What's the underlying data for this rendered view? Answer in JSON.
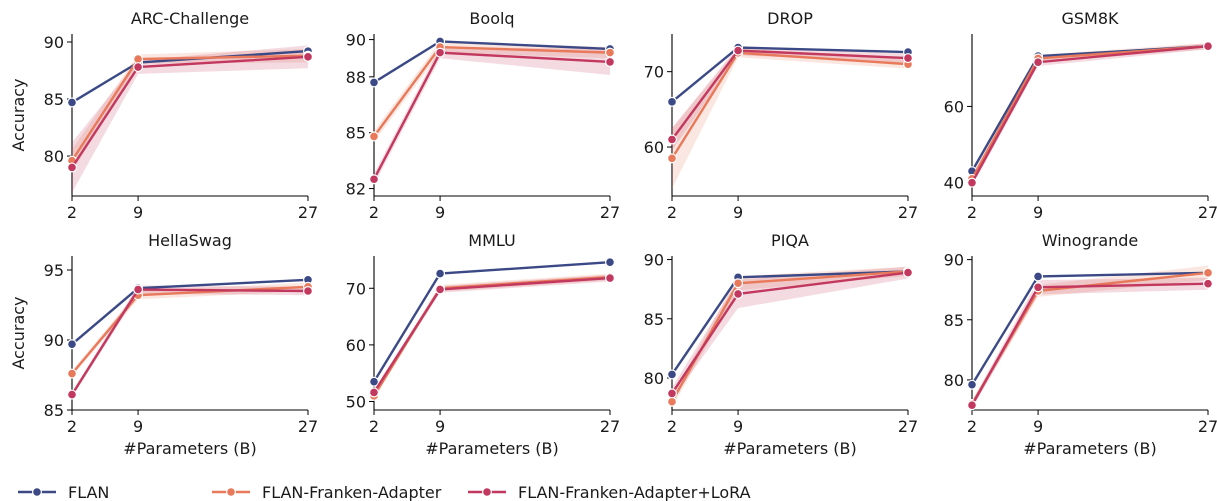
{
  "legend": [
    {
      "name": "FLAN",
      "color": "#3b4a86"
    },
    {
      "name": "FLAN-Franken-Adapter",
      "color": "#e8795a"
    },
    {
      "name": "FLAN-Franken-Adapter+LoRA",
      "color": "#c2385e"
    }
  ],
  "chart_data": [
    {
      "type": "line",
      "title": "ARC-Challenge",
      "xlabel": "",
      "ylabel": "Accuracy",
      "x": [
        2,
        9,
        27
      ],
      "xticks": [
        "2",
        "9",
        "27"
      ],
      "yticks": [
        80,
        85,
        90
      ],
      "ylim": [
        76.5,
        90.7
      ],
      "series": [
        {
          "name": "FLAN",
          "values": [
            84.7,
            88.2,
            89.2
          ]
        },
        {
          "name": "FLAN-Franken-Adapter",
          "values": [
            79.6,
            88.5,
            88.8
          ],
          "band": [
            1.0,
            0.4,
            0.6
          ]
        },
        {
          "name": "FLAN-Franken-Adapter+LoRA",
          "values": [
            79.0,
            87.8,
            88.7
          ],
          "band": [
            2.2,
            0.6,
            1.0
          ]
        }
      ]
    },
    {
      "type": "line",
      "title": "Boolq",
      "xlabel": "",
      "ylabel": "",
      "x": [
        2,
        9,
        27
      ],
      "xticks": [
        "2",
        "9",
        "27"
      ],
      "yticks": [
        82,
        85,
        88,
        90
      ],
      "ylim": [
        81.6,
        90.3
      ],
      "series": [
        {
          "name": "FLAN",
          "values": [
            87.7,
            89.9,
            89.5
          ]
        },
        {
          "name": "FLAN-Franken-Adapter",
          "values": [
            84.8,
            89.6,
            89.3
          ],
          "band": [
            0.3,
            0.3,
            0.3
          ]
        },
        {
          "name": "FLAN-Franken-Adapter+LoRA",
          "values": [
            82.5,
            89.3,
            88.8
          ],
          "band": [
            0.3,
            0.3,
            0.7
          ]
        }
      ]
    },
    {
      "type": "line",
      "title": "DROP",
      "xlabel": "",
      "ylabel": "",
      "x": [
        2,
        9,
        27
      ],
      "xticks": [
        "2",
        "9",
        "27"
      ],
      "yticks": [
        60,
        70
      ],
      "ylim": [
        53.5,
        75.0
      ],
      "series": [
        {
          "name": "FLAN",
          "values": [
            66.0,
            73.2,
            72.6
          ]
        },
        {
          "name": "FLAN-Franken-Adapter",
          "values": [
            58.5,
            72.5,
            71.0
          ],
          "band": [
            4.0,
            0.6,
            0.6
          ]
        },
        {
          "name": "FLAN-Franken-Adapter+LoRA",
          "values": [
            61.0,
            72.8,
            71.8
          ],
          "band": [
            1.5,
            0.6,
            0.7
          ]
        }
      ]
    },
    {
      "type": "line",
      "title": "GSM8K",
      "xlabel": "",
      "ylabel": "",
      "x": [
        2,
        9,
        27
      ],
      "xticks": [
        "2",
        "9",
        "27"
      ],
      "yticks": [
        40,
        60
      ],
      "ylim": [
        36.5,
        79.0
      ],
      "series": [
        {
          "name": "FLAN",
          "values": [
            43.0,
            73.2,
            75.8
          ]
        },
        {
          "name": "FLAN-Franken-Adapter",
          "values": [
            41.0,
            72.6,
            75.8
          ],
          "band": [
            1.0,
            1.0,
            0.8
          ]
        },
        {
          "name": "FLAN-Franken-Adapter+LoRA",
          "values": [
            40.0,
            71.6,
            75.8
          ],
          "band": [
            1.0,
            1.0,
            0.8
          ]
        }
      ]
    },
    {
      "type": "line",
      "title": "HellaSwag",
      "xlabel": "#Parameters (B)",
      "ylabel": "Accuracy",
      "x": [
        2,
        9,
        27
      ],
      "xticks": [
        "2",
        "9",
        "27"
      ],
      "yticks": [
        85,
        90,
        95
      ],
      "ylim": [
        85.0,
        96.0
      ],
      "series": [
        {
          "name": "FLAN",
          "values": [
            89.7,
            93.7,
            94.3
          ]
        },
        {
          "name": "FLAN-Franken-Adapter",
          "values": [
            87.6,
            93.2,
            93.8
          ],
          "band": [
            0.2,
            0.3,
            0.3
          ]
        },
        {
          "name": "FLAN-Franken-Adapter+LoRA",
          "values": [
            86.1,
            93.6,
            93.5
          ],
          "band": [
            0.2,
            0.3,
            0.3
          ]
        }
      ]
    },
    {
      "type": "line",
      "title": "MMLU",
      "xlabel": "#Parameters (B)",
      "ylabel": "",
      "x": [
        2,
        9,
        27
      ],
      "xticks": [
        "2",
        "9",
        "27"
      ],
      "yticks": [
        50,
        60,
        70
      ],
      "ylim": [
        48.5,
        75.7
      ],
      "series": [
        {
          "name": "FLAN",
          "values": [
            53.5,
            72.6,
            74.6
          ]
        },
        {
          "name": "FLAN-Franken-Adapter",
          "values": [
            51.0,
            70.0,
            72.0
          ],
          "band": [
            0.5,
            0.6,
            0.6
          ]
        },
        {
          "name": "FLAN-Franken-Adapter+LoRA",
          "values": [
            51.6,
            69.8,
            71.8
          ],
          "band": [
            0.5,
            0.6,
            0.6
          ]
        }
      ]
    },
    {
      "type": "line",
      "title": "PIQA",
      "xlabel": "#Parameters (B)",
      "ylabel": "",
      "x": [
        2,
        9,
        27
      ],
      "xticks": [
        "2",
        "9",
        "27"
      ],
      "yticks": [
        80,
        85,
        90
      ],
      "ylim": [
        77.3,
        90.3
      ],
      "series": [
        {
          "name": "FLAN",
          "values": [
            80.3,
            88.5,
            89.0
          ]
        },
        {
          "name": "FLAN-Franken-Adapter",
          "values": [
            78.0,
            88.0,
            89.0
          ],
          "band": [
            0.5,
            0.6,
            0.4
          ]
        },
        {
          "name": "FLAN-Franken-Adapter+LoRA",
          "values": [
            78.7,
            87.1,
            88.9
          ],
          "band": [
            0.5,
            1.2,
            0.5
          ]
        }
      ]
    },
    {
      "type": "line",
      "title": "Winogrande",
      "xlabel": "#Parameters (B)",
      "ylabel": "",
      "x": [
        2,
        9,
        27
      ],
      "xticks": [
        "2",
        "9",
        "27"
      ],
      "yticks": [
        80,
        85,
        90
      ],
      "ylim": [
        77.5,
        90.3
      ],
      "series": [
        {
          "name": "FLAN",
          "values": [
            79.6,
            88.6,
            88.9
          ]
        },
        {
          "name": "FLAN-Franken-Adapter",
          "values": [
            78.0,
            87.4,
            88.9
          ],
          "band": [
            0.3,
            0.5,
            0.6
          ]
        },
        {
          "name": "FLAN-Franken-Adapter+LoRA",
          "values": [
            77.9,
            87.7,
            88.0
          ],
          "band": [
            0.3,
            0.6,
            0.5
          ]
        }
      ]
    }
  ]
}
